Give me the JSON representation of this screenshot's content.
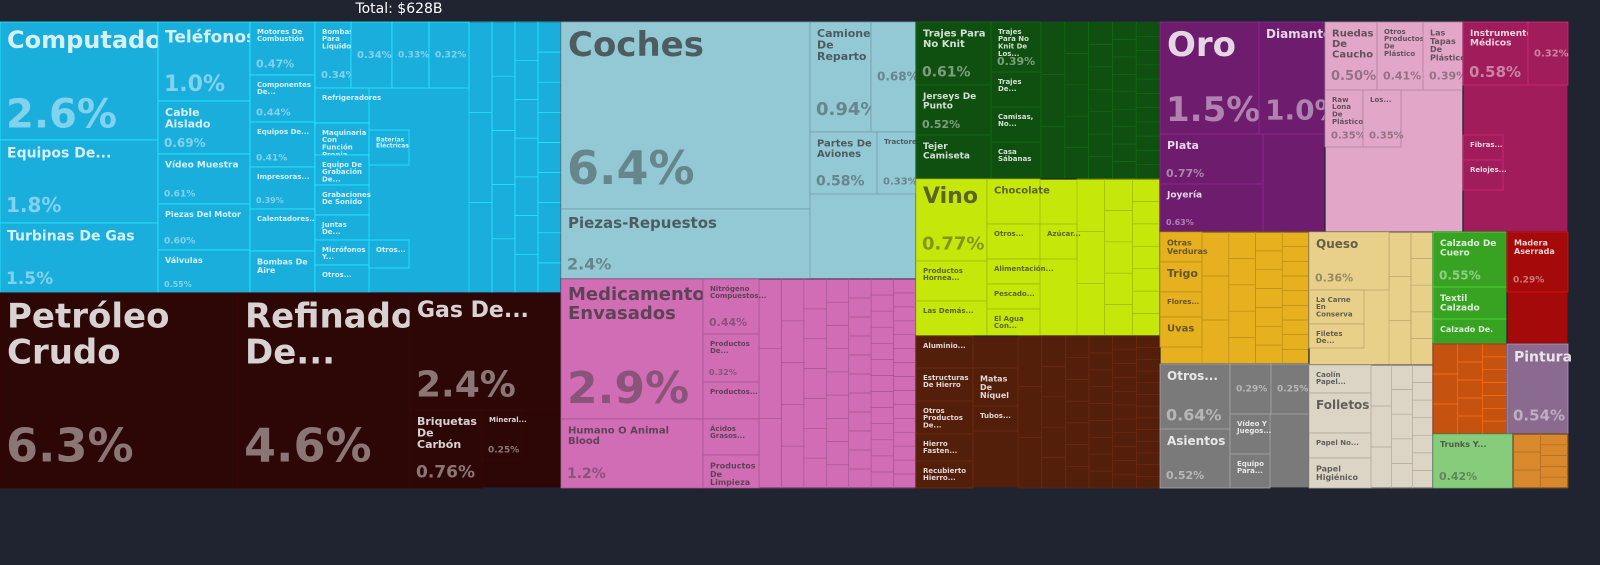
{
  "chart_data": {
    "type": "treemap",
    "title": "Total: $628B",
    "groups": [
      {
        "color": "#1aaedd",
        "items": [
          {
            "label": "Computado",
            "value": 2.6,
            "value_label": "2.6%"
          },
          {
            "label": "Equipos De...",
            "value": 1.8,
            "value_label": "1.8%"
          },
          {
            "label": "Turbinas De Gas",
            "value": 1.5,
            "value_label": "1.5%"
          },
          {
            "label": "Teléfonos",
            "value": 1.0,
            "value_label": "1.0%"
          },
          {
            "label": "Cable Aislado",
            "value": 0.69,
            "value_label": "0.69%"
          },
          {
            "label": "Vídeo Muestra",
            "value": 0.61,
            "value_label": "0.61%"
          },
          {
            "label": "Piezas Del Motor",
            "value": 0.6,
            "value_label": "0.60%"
          },
          {
            "label": "Válvulas",
            "value": 0.55,
            "value_label": "0.55%"
          },
          {
            "label": "Motores De Combustión",
            "value": 0.47,
            "value_label": "0.47%"
          },
          {
            "label": "Componentes De...",
            "value": 0.44,
            "value_label": "0.44%"
          },
          {
            "label": "Equipos De...",
            "value": 0.41,
            "value_label": "0.41%"
          },
          {
            "label": "Impresoras...",
            "value": 0.39,
            "value_label": "0.39%"
          },
          {
            "label": "Calentadores...",
            "value": 0.37
          },
          {
            "label": "Bombas De Aire",
            "value": 0.37
          },
          {
            "label": "Bombas Para Líquidos",
            "value": 0.34,
            "value_label": "0.34%"
          },
          {
            "value": 0.34,
            "value_label": "0.34%"
          },
          {
            "value": 0.33,
            "value_label": "0.33%"
          },
          {
            "value": 0.32,
            "value_label": "0.32%"
          },
          {
            "label": "Refrigeradores",
            "value": 0.3
          },
          {
            "label": "Maquinaria Con Función Propia",
            "value": 0.28
          },
          {
            "label": "Equipo De Grabación De...",
            "value": 0.27
          },
          {
            "label": "Grabaciones De Sonido",
            "value": 0.27
          },
          {
            "label": "Juntas De...",
            "value": 0.22
          },
          {
            "label": "Micrófonos Y...",
            "value": 0.22
          },
          {
            "label": "Otros...",
            "value": 0.24
          },
          {
            "label": "Baterías Eléctricas",
            "value": 0.22
          },
          {
            "label": "Otros...",
            "value": 0.17
          }
        ]
      },
      {
        "color": "#2d0606",
        "items": [
          {
            "label": "Petróleo Crudo",
            "value": 6.3,
            "value_label": "6.3%"
          },
          {
            "label": "Refinado De...",
            "value": 4.6,
            "value_label": "4.6%"
          },
          {
            "label": "Gas De...",
            "value": 2.4,
            "value_label": "2.4%"
          },
          {
            "label": "Briquetas De Carbón",
            "value": 0.76,
            "value_label": "0.76%"
          },
          {
            "label": "Mineral...",
            "value": 0.25,
            "value_label": "0.25%"
          }
        ]
      },
      {
        "color": "#93c8d5",
        "items": [
          {
            "label": "Coches",
            "value": 6.4,
            "value_label": "6.4%"
          },
          {
            "label": "Piezas-Repuestos",
            "value": 2.4,
            "value_label": "2.4%"
          },
          {
            "label": "Camiones De Reparto",
            "value": 0.94,
            "value_label": "0.94%"
          },
          {
            "value": 0.68,
            "value_label": "0.68%"
          },
          {
            "label": "Partes De Aviones",
            "value": 0.58,
            "value_label": "0.58%"
          },
          {
            "label": "Tractores",
            "value": 0.33,
            "value_label": "0.33%"
          }
        ]
      },
      {
        "color": "#d16db5",
        "items": [
          {
            "label": "Medicamentos Envasados",
            "value": 2.9,
            "value_label": "2.9%"
          },
          {
            "label": "Humano O Animal Blood",
            "value": 1.2,
            "value_label": "1.2%"
          },
          {
            "label": "Nitrógeno Compuestos...",
            "value": 0.44,
            "value_label": "0.44%"
          },
          {
            "label": "Productos De...",
            "value": 0.32,
            "value_label": "0.32%"
          },
          {
            "label": "Productos...",
            "value": 0.3
          },
          {
            "label": "Ácidos Grasos...",
            "value": 0.29
          },
          {
            "label": "Productos De Limpieza",
            "value": 0.27
          }
        ]
      },
      {
        "color": "#0f4f10",
        "items": [
          {
            "label": "Trajes Para No Knit",
            "value": 0.61,
            "value_label": "0.61%"
          },
          {
            "label": "Jerseys De Punto",
            "value": 0.52,
            "value_label": "0.52%"
          },
          {
            "label": "Tejer Camiseta",
            "value": 0.45
          },
          {
            "label": "Trajes Para No Knit De Los...",
            "value": 0.39,
            "value_label": "0.39%"
          },
          {
            "label": "Trajes De...",
            "value": 0.28
          },
          {
            "label": "Camisas, No...",
            "value": 0.28
          },
          {
            "label": "Casa Sábanas",
            "value": 0.29
          }
        ]
      },
      {
        "color": "#c5e80a",
        "items": [
          {
            "label": "Vino",
            "value": 0.77,
            "value_label": "0.77%"
          },
          {
            "label": "Productos Hornea...",
            "value": 0.37
          },
          {
            "label": "Las Demás...",
            "value": 0.33
          },
          {
            "label": "Chocolate",
            "value": 0.31
          },
          {
            "label": "Otros...",
            "value": 0.24
          },
          {
            "label": "Azúcar...",
            "value": 0.17
          },
          {
            "label": "Alimentación...",
            "value": 0.17
          },
          {
            "label": "Pescado...",
            "value": 0.17
          },
          {
            "label": "El Agua Con...",
            "value": 0.18
          }
        ]
      },
      {
        "color": "#531f0b",
        "items": [
          {
            "label": "Aluminio...",
            "value": 0.25
          },
          {
            "label": "Estructuras De Hierro",
            "value": 0.24
          },
          {
            "label": "Otros Productos De...",
            "value": 0.24
          },
          {
            "label": "Hierro Fasten...",
            "value": 0.2
          },
          {
            "label": "Recubierto Hierro...",
            "value": 0.2
          },
          {
            "label": "Matas De Níquel",
            "value": 0.22
          },
          {
            "label": "Tubos...",
            "value": 0.14
          }
        ]
      },
      {
        "color": "#6e1c6e",
        "items": [
          {
            "label": "Oro",
            "value": 1.5,
            "value_label": "1.5%"
          },
          {
            "label": "Diamantes",
            "value": 1.0,
            "value_label": "1.0%"
          },
          {
            "label": "Plata",
            "value": 0.77,
            "value_label": "0.77%"
          },
          {
            "label": "Joyería",
            "value": 0.63,
            "value_label": "0.63%"
          }
        ]
      },
      {
        "color": "#e2a6c8",
        "items": [
          {
            "label": "Ruedas De Caucho",
            "value": 0.5,
            "value_label": "0.50%"
          },
          {
            "label": "Otros Productos De Plástico",
            "value": 0.41,
            "value_label": "0.41%"
          },
          {
            "label": "Las Tapas De Plástico",
            "value": 0.39,
            "value_label": "0.39%"
          },
          {
            "label": "Raw Lona De Plástico",
            "value": 0.35,
            "value_label": "0.35%"
          },
          {
            "label": "Los...",
            "value": 0.35,
            "value_label": "0.35%"
          }
        ]
      },
      {
        "color": "#a01c5a",
        "items": [
          {
            "label": "Instrumentos Médicos",
            "value": 0.58,
            "value_label": "0.58%"
          },
          {
            "value": 0.32,
            "value_label": "0.32%"
          },
          {
            "label": "Fibras...",
            "value": 0.15
          },
          {
            "label": "Relojes...",
            "value": 0.15
          }
        ]
      },
      {
        "color": "#e7b01e",
        "items": [
          {
            "label": "Otras Verduras",
            "value": 0.16
          },
          {
            "label": "Trigo",
            "value": 0.16
          },
          {
            "label": "Flores...",
            "value": 0.13
          },
          {
            "label": "Uvas",
            "value": 0.16
          }
        ]
      },
      {
        "color": "#e8d08a",
        "items": [
          {
            "label": "Queso",
            "value": 0.36,
            "value_label": "0.36%"
          },
          {
            "label": "La Carne En Conserva",
            "value": 0.23
          },
          {
            "label": "Filetes De...",
            "value": 0.16
          }
        ]
      },
      {
        "color": "#38a323",
        "items": [
          {
            "label": "Calzado De Cuero",
            "value": 0.55,
            "value_label": "0.55%"
          },
          {
            "label": "Textil Calzado",
            "value": 0.29
          },
          {
            "label": "Calzado De.",
            "value": 0.23
          }
        ]
      },
      {
        "color": "#a50a0a",
        "items": [
          {
            "label": "Madera Aserrada",
            "value": 0.29,
            "value_label": "0.29%"
          }
        ]
      },
      {
        "color": "#7a7a7a",
        "items": [
          {
            "label": "Otros...",
            "value": 0.64,
            "value_label": "0.64%"
          },
          {
            "label": "Asientos",
            "value": 0.52,
            "value_label": "0.52%"
          },
          {
            "value": 0.29,
            "value_label": "0.29%"
          },
          {
            "value": 0.25,
            "value_label": "0.25%"
          },
          {
            "label": "Vídeo Y Juegos...",
            "value": 0.2
          },
          {
            "label": "Equipo Para...",
            "value": 0.17
          }
        ]
      },
      {
        "color": "#dcd5c6",
        "items": [
          {
            "label": "Caolín Papel...",
            "value": 0.22
          },
          {
            "label": "Folletos",
            "value": 0.31
          },
          {
            "label": "Papel No...",
            "value": 0.19
          },
          {
            "label": "Papel Higiénico",
            "value": 0.23
          }
        ]
      },
      {
        "color": "#c5520f",
        "items": []
      },
      {
        "color": "#8a6b8f",
        "items": [
          {
            "label": "Pintura",
            "value": 0.54,
            "value_label": "0.54%"
          }
        ]
      },
      {
        "color": "#86cc7a",
        "items": [
          {
            "label": "Trunks Y...",
            "value": 0.42,
            "value_label": "0.42%"
          }
        ]
      },
      {
        "color": "#d9892b",
        "items": []
      }
    ]
  }
}
